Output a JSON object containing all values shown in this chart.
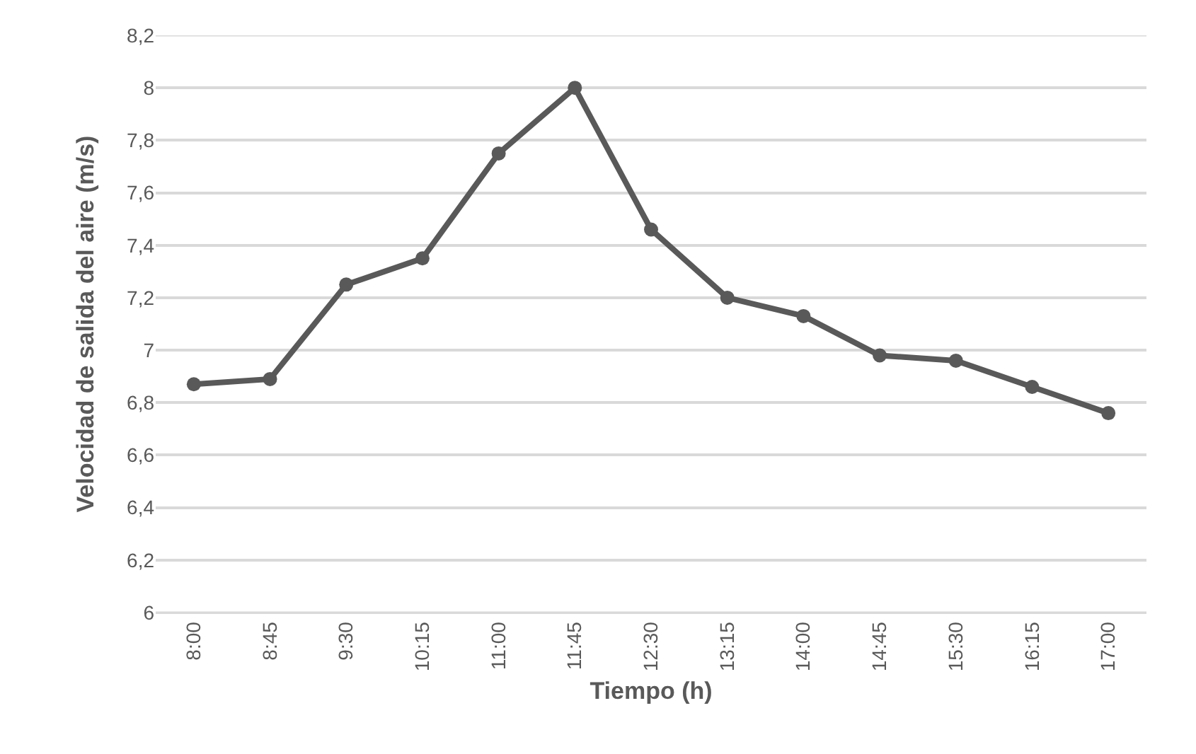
{
  "chart_data": {
    "type": "line",
    "xlabel": "Tiempo (h)",
    "ylabel": "Velocidad de salida del aire (m/s)",
    "categories": [
      "8:00",
      "8:45",
      "9:30",
      "10:15",
      "11:00",
      "11:45",
      "12:30",
      "13:15",
      "14:00",
      "14:45",
      "15:30",
      "16:15",
      "17:00"
    ],
    "series": [
      {
        "color": "#595959",
        "values": [
          6.87,
          6.89,
          7.25,
          7.35,
          7.75,
          8.0,
          7.46,
          7.2,
          7.13,
          6.98,
          6.96,
          6.86,
          6.76
        ]
      }
    ],
    "ylim": [
      6,
      8.2
    ],
    "yticks": [
      6,
      {
        "value": 6.2,
        "label": "6,2"
      },
      {
        "value": 6.4,
        "label": "6,4"
      },
      {
        "value": 6.6,
        "label": "6,6"
      },
      {
        "value": 6.8,
        "label": "6,8"
      },
      7,
      {
        "value": 7.2,
        "label": "7,2"
      },
      {
        "value": 7.4,
        "label": "7,4"
      },
      {
        "value": 7.6,
        "label": "7,6"
      },
      {
        "value": 7.8,
        "label": "7,8"
      },
      8,
      {
        "value": 8.2,
        "label": "8,2"
      }
    ],
    "grid": "y",
    "marker": "circle",
    "line_style": "solid"
  }
}
